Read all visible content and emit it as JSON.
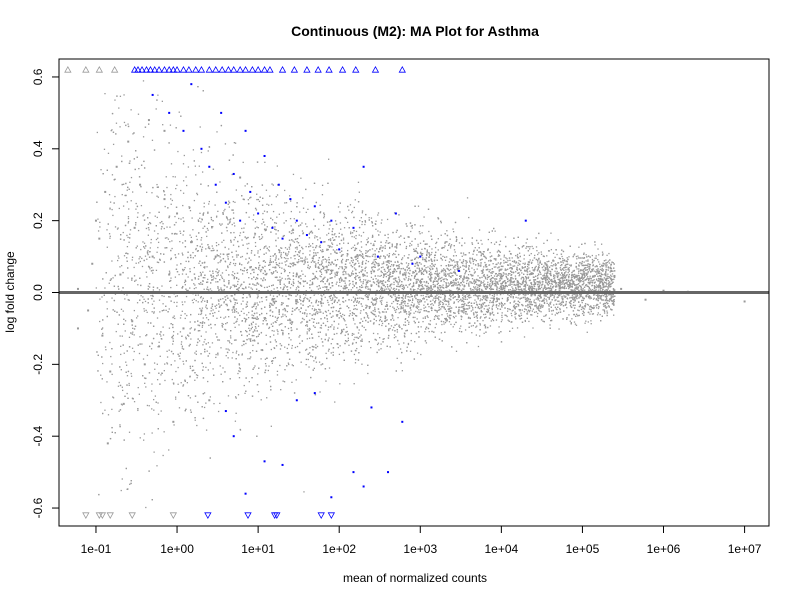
{
  "chart_data": {
    "type": "scatter",
    "title": "Continuous (M2): MA Plot for Asthma",
    "xlabel": "mean of normalized counts",
    "ylabel": "log fold change",
    "x_scale": "log10",
    "xlim": [
      0.035,
      20000000
    ],
    "ylim": [
      -0.65,
      0.65
    ],
    "x_ticks": [
      "1e-01",
      "1e+00",
      "1e+01",
      "1e+02",
      "1e+03",
      "1e+04",
      "1e+05",
      "1e+06",
      "1e+07"
    ],
    "x_tick_values": [
      0.1,
      1,
      10,
      100,
      1000,
      10000,
      100000,
      1000000,
      10000000
    ],
    "y_ticks": [
      "-0.6",
      "-0.4",
      "-0.2",
      "0.0",
      "0.2",
      "0.4",
      "0.6"
    ],
    "y_tick_values": [
      -0.6,
      -0.4,
      -0.2,
      0.0,
      0.2,
      0.4,
      0.6
    ],
    "reference_line": 0.0,
    "grid": false,
    "colors": {
      "non_significant": "#999999",
      "significant": "#0000ff",
      "reference_line": "#666666"
    },
    "series": [
      {
        "significant": false,
        "color": "#999999",
        "shape": "point",
        "points": [
          [
            0.06,
            0.01
          ],
          [
            0.08,
            -0.05
          ],
          [
            0.09,
            0.08
          ],
          [
            0.11,
            0.15
          ],
          [
            0.12,
            -0.12
          ],
          [
            0.13,
            0.28
          ],
          [
            0.15,
            -0.22
          ],
          [
            0.18,
            0.35
          ],
          [
            0.2,
            0.05
          ],
          [
            0.22,
            -0.31
          ],
          [
            0.25,
            0.42
          ],
          [
            0.28,
            -0.08
          ],
          [
            0.3,
            0.18
          ],
          [
            0.35,
            0.3
          ],
          [
            0.4,
            -0.2
          ],
          [
            0.45,
            0.48
          ],
          [
            0.5,
            0.1
          ],
          [
            0.6,
            -0.15
          ],
          [
            0.7,
            0.26
          ],
          [
            0.8,
            0.05
          ],
          [
            1.0,
            0.22
          ],
          [
            1.2,
            -0.1
          ],
          [
            1.5,
            0.14
          ],
          [
            2.0,
            -0.05
          ],
          [
            3.0,
            0.1
          ],
          [
            5.0,
            -0.04
          ],
          [
            8.0,
            0.07
          ],
          [
            15.0,
            -0.02
          ],
          [
            30.0,
            0.05
          ],
          [
            60.0,
            -0.03
          ],
          [
            120.0,
            0.04
          ],
          [
            250.0,
            0.02
          ],
          [
            500.0,
            -0.02
          ],
          [
            1000.0,
            0.03
          ],
          [
            3000.0,
            -0.01
          ],
          [
            10000.0,
            0.01
          ],
          [
            30000.0,
            -0.01
          ],
          [
            100000.0,
            0.005
          ],
          [
            300000.0,
            0.01
          ],
          [
            600000.0,
            -0.02
          ],
          [
            1000000.0,
            0.005
          ],
          [
            2000000.0,
            0.002
          ],
          [
            10000000.0,
            -0.025
          ],
          [
            0.9,
            -0.36
          ],
          [
            0.14,
            -0.42
          ],
          [
            2.5,
            -0.3
          ],
          [
            6.0,
            0.32
          ],
          [
            0.7,
            0.45
          ],
          [
            0.1,
            0.2
          ],
          [
            0.06,
            -0.1
          ]
        ]
      },
      {
        "significant": true,
        "color": "#0000ff",
        "shape": "point",
        "points": [
          [
            0.5,
            0.55
          ],
          [
            0.8,
            0.5
          ],
          [
            1.2,
            0.45
          ],
          [
            1.5,
            0.58
          ],
          [
            2.0,
            0.4
          ],
          [
            2.5,
            0.35
          ],
          [
            3.0,
            0.3
          ],
          [
            3.5,
            0.5
          ],
          [
            4.0,
            0.25
          ],
          [
            5.0,
            0.33
          ],
          [
            6.0,
            0.2
          ],
          [
            7.0,
            0.45
          ],
          [
            8.0,
            0.28
          ],
          [
            10.0,
            0.22
          ],
          [
            12.0,
            0.38
          ],
          [
            15.0,
            0.18
          ],
          [
            18.0,
            0.3
          ],
          [
            20.0,
            0.15
          ],
          [
            25.0,
            0.26
          ],
          [
            30.0,
            0.2
          ],
          [
            40.0,
            0.16
          ],
          [
            50.0,
            0.24
          ],
          [
            60.0,
            0.14
          ],
          [
            80.0,
            0.2
          ],
          [
            100.0,
            0.12
          ],
          [
            150.0,
            0.18
          ],
          [
            200.0,
            0.35
          ],
          [
            300.0,
            0.1
          ],
          [
            500.0,
            0.22
          ],
          [
            800.0,
            0.08
          ],
          [
            1000.0,
            0.1
          ],
          [
            3000.0,
            0.06
          ],
          [
            20000.0,
            0.2
          ],
          [
            4.0,
            -0.33
          ],
          [
            5.0,
            -0.4
          ],
          [
            7.0,
            -0.56
          ],
          [
            12.0,
            -0.47
          ],
          [
            20.0,
            -0.48
          ],
          [
            30.0,
            -0.3
          ],
          [
            50.0,
            -0.28
          ],
          [
            80.0,
            -0.57
          ],
          [
            150.0,
            -0.5
          ],
          [
            200.0,
            -0.54
          ],
          [
            250.0,
            -0.32
          ],
          [
            400.0,
            -0.5
          ],
          [
            600.0,
            -0.36
          ]
        ]
      },
      {
        "significant": false,
        "color": "#999999",
        "shape": "triangle-up",
        "clipped": "top",
        "points": [
          [
            0.045,
            0.62
          ],
          [
            0.075,
            0.62
          ],
          [
            0.11,
            0.62
          ],
          [
            0.17,
            0.62
          ]
        ]
      },
      {
        "significant": true,
        "color": "#0000ff",
        "shape": "triangle-up",
        "clipped": "top",
        "points": [
          [
            0.3,
            0.62
          ],
          [
            0.33,
            0.62
          ],
          [
            0.37,
            0.62
          ],
          [
            0.42,
            0.62
          ],
          [
            0.47,
            0.62
          ],
          [
            0.53,
            0.62
          ],
          [
            0.6,
            0.62
          ],
          [
            0.7,
            0.62
          ],
          [
            0.8,
            0.62
          ],
          [
            0.9,
            0.62
          ],
          [
            1.0,
            0.62
          ],
          [
            1.2,
            0.62
          ],
          [
            1.4,
            0.62
          ],
          [
            1.7,
            0.62
          ],
          [
            2.0,
            0.62
          ],
          [
            2.5,
            0.62
          ],
          [
            3.0,
            0.62
          ],
          [
            3.6,
            0.62
          ],
          [
            4.3,
            0.62
          ],
          [
            5.0,
            0.62
          ],
          [
            6.0,
            0.62
          ],
          [
            7.0,
            0.62
          ],
          [
            8.5,
            0.62
          ],
          [
            10.0,
            0.62
          ],
          [
            12.0,
            0.62
          ],
          [
            14.0,
            0.62
          ],
          [
            20.0,
            0.62
          ],
          [
            28.0,
            0.62
          ],
          [
            40.0,
            0.62
          ],
          [
            55.0,
            0.62
          ],
          [
            75.0,
            0.62
          ],
          [
            110.0,
            0.62
          ],
          [
            160.0,
            0.62
          ],
          [
            280.0,
            0.62
          ],
          [
            600.0,
            0.62
          ]
        ]
      },
      {
        "significant": false,
        "color": "#999999",
        "shape": "triangle-down",
        "clipped": "bottom",
        "points": [
          [
            0.075,
            -0.62
          ],
          [
            0.11,
            -0.62
          ],
          [
            0.12,
            -0.62
          ],
          [
            0.15,
            -0.62
          ],
          [
            0.28,
            -0.62
          ],
          [
            0.9,
            -0.62
          ]
        ]
      },
      {
        "significant": true,
        "color": "#0000ff",
        "shape": "triangle-down",
        "clipped": "bottom",
        "points": [
          [
            2.4,
            -0.62
          ],
          [
            7.5,
            -0.62
          ],
          [
            16.0,
            -0.62
          ],
          [
            17.0,
            -0.62
          ],
          [
            60.0,
            -0.62
          ],
          [
            80.0,
            -0.62
          ]
        ]
      }
    ]
  }
}
